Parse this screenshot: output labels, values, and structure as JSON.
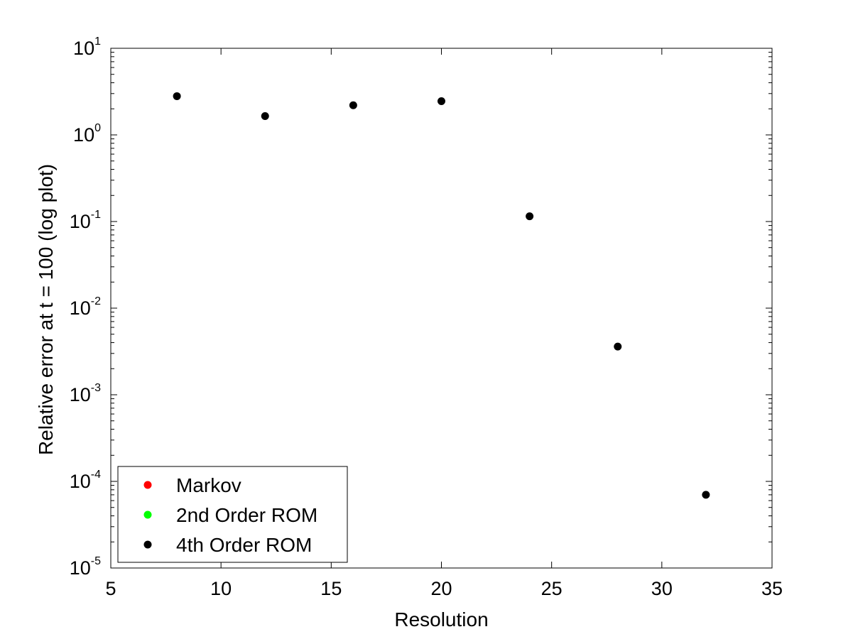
{
  "chart_data": {
    "type": "scatter",
    "title": "",
    "xlabel": "Resolution",
    "ylabel": "Relative error at t = 100 (log plot)",
    "xlim": [
      5,
      35
    ],
    "ylim": [
      1e-05,
      10
    ],
    "yscale": "log",
    "grid": false,
    "x_ticks": [
      5,
      10,
      15,
      20,
      25,
      30,
      35
    ],
    "y_ticks": [
      {
        "base": "10",
        "exp": "-5",
        "value": 1e-05
      },
      {
        "base": "10",
        "exp": "-4",
        "value": 0.0001
      },
      {
        "base": "10",
        "exp": "-3",
        "value": 0.001
      },
      {
        "base": "10",
        "exp": "-2",
        "value": 0.01
      },
      {
        "base": "10",
        "exp": "-1",
        "value": 0.1
      },
      {
        "base": "10",
        "exp": "0",
        "value": 1
      },
      {
        "base": "10",
        "exp": "1",
        "value": 10
      }
    ],
    "legend_position": "bottom-left",
    "series": [
      {
        "name": "Markov",
        "color": "#ff0000",
        "x": [],
        "y": []
      },
      {
        "name": "2nd Order ROM",
        "color": "#00ff00",
        "x": [],
        "y": []
      },
      {
        "name": "4th Order ROM",
        "color": "#000000",
        "x": [
          8,
          12,
          16,
          20,
          24,
          28,
          32
        ],
        "y": [
          2.8,
          1.65,
          2.2,
          2.45,
          0.115,
          0.0036,
          7e-05
        ]
      }
    ]
  }
}
